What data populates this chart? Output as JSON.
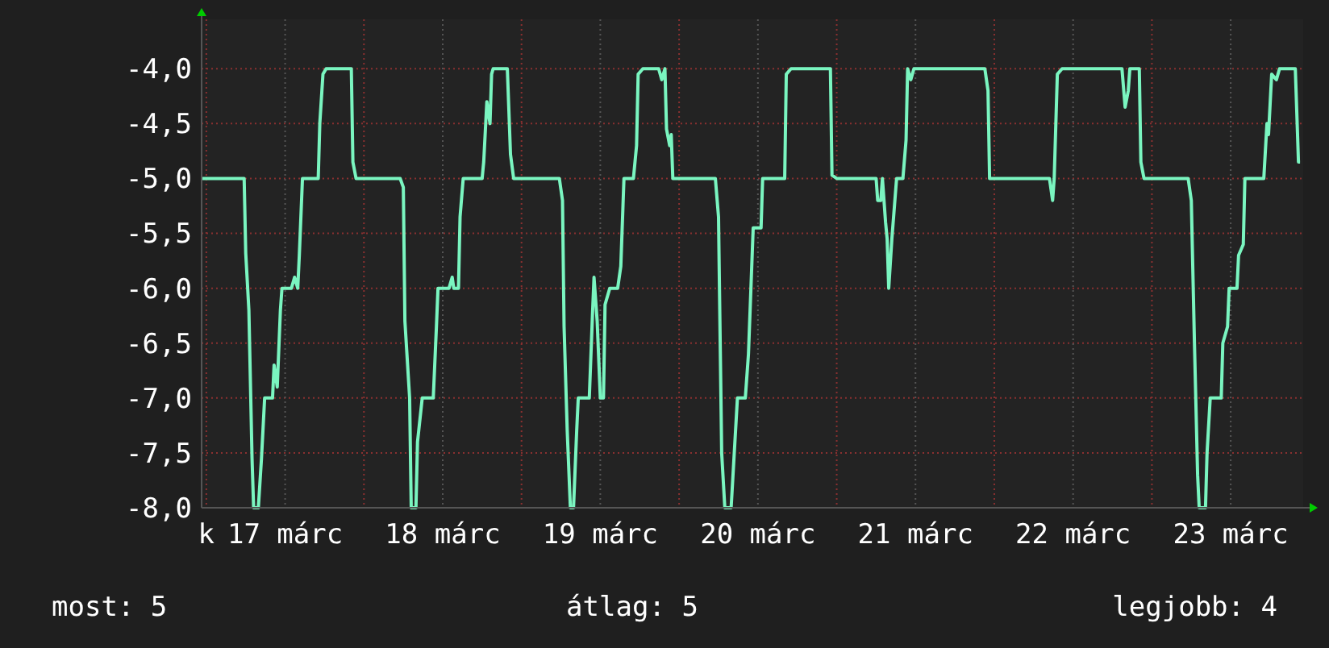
{
  "chart_data": {
    "type": "line",
    "color": "#7af5c0",
    "x": [
      16.97,
      17.24,
      17.25,
      17.27,
      17.29,
      17.3,
      17.33,
      17.35,
      17.37,
      17.42,
      17.43,
      17.45,
      17.47,
      17.48,
      17.54,
      17.56,
      17.58,
      17.59,
      17.61,
      17.71,
      17.72,
      17.74,
      17.76,
      17.92,
      17.93,
      17.95,
      18.23,
      18.25,
      18.26,
      18.29,
      18.3,
      18.33,
      18.34,
      18.37,
      18.44,
      18.46,
      18.47,
      18.54,
      18.56,
      18.57,
      18.6,
      18.61,
      18.63,
      18.75,
      18.76,
      18.78,
      18.8,
      18.81,
      18.82,
      18.91,
      18.93,
      18.95,
      19.24,
      19.26,
      19.27,
      19.29,
      19.31,
      19.33,
      19.35,
      19.36,
      19.43,
      19.45,
      19.46,
      19.48,
      19.5,
      19.52,
      19.53,
      19.56,
      19.61,
      19.63,
      19.65,
      19.71,
      19.73,
      19.74,
      19.77,
      19.87,
      19.89,
      19.91,
      19.92,
      19.94,
      19.95,
      19.96,
      20.23,
      20.25,
      20.27,
      20.29,
      20.33,
      20.35,
      20.37,
      20.42,
      20.44,
      20.47,
      20.52,
      20.53,
      20.67,
      20.68,
      20.71,
      20.96,
      20.97,
      21.0,
      21.25,
      21.26,
      21.28,
      21.29,
      21.31,
      21.32,
      21.33,
      21.35,
      21.38,
      21.42,
      21.44,
      21.45,
      21.47,
      21.49,
      21.94,
      21.96,
      21.97,
      22.35,
      22.37,
      22.38,
      22.4,
      22.43,
      22.81,
      22.83,
      22.85,
      22.86,
      22.92,
      22.93,
      22.95,
      23.23,
      23.25,
      23.27,
      23.29,
      23.3,
      23.34,
      23.35,
      23.37,
      23.44,
      23.45,
      23.48,
      23.49,
      23.54,
      23.55,
      23.58,
      23.59,
      23.71,
      23.73,
      23.74,
      23.76,
      23.79,
      23.81,
      23.91,
      23.93,
      23.94
    ],
    "values": [
      -5.0,
      -5.0,
      -5.68,
      -6.2,
      -7.55,
      -8.0,
      -8.0,
      -7.55,
      -7.0,
      -7.0,
      -6.7,
      -6.9,
      -6.2,
      -6.0,
      -6.0,
      -5.9,
      -6.0,
      -5.7,
      -5.0,
      -5.0,
      -4.5,
      -4.05,
      -4.0,
      -4.0,
      -4.85,
      -5.0,
      -5.0,
      -5.08,
      -6.3,
      -7.0,
      -8.0,
      -8.0,
      -7.4,
      -7.0,
      -7.0,
      -6.35,
      -6.0,
      -6.0,
      -5.9,
      -6.0,
      -6.0,
      -5.35,
      -5.0,
      -5.0,
      -4.85,
      -4.3,
      -4.5,
      -4.05,
      -4.0,
      -4.0,
      -4.78,
      -5.0,
      -5.0,
      -5.2,
      -6.35,
      -7.3,
      -8.0,
      -8.0,
      -7.3,
      -7.0,
      -7.0,
      -6.25,
      -5.9,
      -6.3,
      -7.0,
      -7.0,
      -6.15,
      -6.0,
      -6.0,
      -5.8,
      -5.0,
      -5.0,
      -4.7,
      -4.05,
      -4.0,
      -4.0,
      -4.1,
      -4.0,
      -4.55,
      -4.7,
      -4.6,
      -5.0,
      -5.0,
      -5.35,
      -7.5,
      -8.0,
      -8.0,
      -7.5,
      -7.0,
      -7.0,
      -6.6,
      -5.45,
      -5.45,
      -5.0,
      -5.0,
      -4.05,
      -4.0,
      -4.0,
      -4.97,
      -5.0,
      -5.0,
      -5.2,
      -5.2,
      -5.0,
      -5.4,
      -5.55,
      -6.0,
      -5.55,
      -5.0,
      -5.0,
      -4.65,
      -4.0,
      -4.1,
      -4.0,
      -4.0,
      -4.2,
      -5.0,
      -5.0,
      -5.2,
      -5.0,
      -4.05,
      -4.0,
      -4.0,
      -4.35,
      -4.2,
      -4.0,
      -4.0,
      -4.85,
      -5.0,
      -5.0,
      -5.2,
      -6.5,
      -7.7,
      -8.0,
      -8.0,
      -7.5,
      -7.0,
      -7.0,
      -6.5,
      -6.35,
      -6.0,
      -6.0,
      -5.7,
      -5.6,
      -5.0,
      -5.0,
      -4.5,
      -4.6,
      -4.05,
      -4.1,
      -4.0,
      -4.0,
      -4.85,
      -4.85
    ],
    "xlim": [
      16.97,
      23.96
    ],
    "xticks": [
      {
        "value": 17,
        "label": "k"
      },
      {
        "value": 17.5,
        "label": "17 márc"
      },
      {
        "value": 18,
        "label": null
      },
      {
        "value": 18.5,
        "label": "18 márc"
      },
      {
        "value": 19,
        "label": null
      },
      {
        "value": 19.5,
        "label": "19 márc"
      },
      {
        "value": 20,
        "label": null
      },
      {
        "value": 20.5,
        "label": "20 márc"
      },
      {
        "value": 21,
        "label": null
      },
      {
        "value": 21.5,
        "label": "21 márc"
      },
      {
        "value": 22,
        "label": null
      },
      {
        "value": 22.5,
        "label": "22 márc"
      },
      {
        "value": 23,
        "label": null
      },
      {
        "value": 23.5,
        "label": "23 márc"
      }
    ],
    "ylim": [
      -8,
      -3.55
    ],
    "yticks": [
      {
        "value": -8,
        "label": "-8,0"
      },
      {
        "value": -7.5,
        "label": "-7,5"
      },
      {
        "value": -7,
        "label": "-7,0"
      },
      {
        "value": -6.5,
        "label": "-6,5"
      },
      {
        "value": -6,
        "label": "-6,0"
      },
      {
        "value": -5.5,
        "label": "-5,5"
      },
      {
        "value": -5,
        "label": "-5,0"
      },
      {
        "value": -4.5,
        "label": "-4,5"
      },
      {
        "value": -4,
        "label": "-4,0"
      }
    ],
    "grid": true,
    "annotations": [
      "most: 5",
      "átlag: 5",
      "legjobb: 4"
    ]
  }
}
